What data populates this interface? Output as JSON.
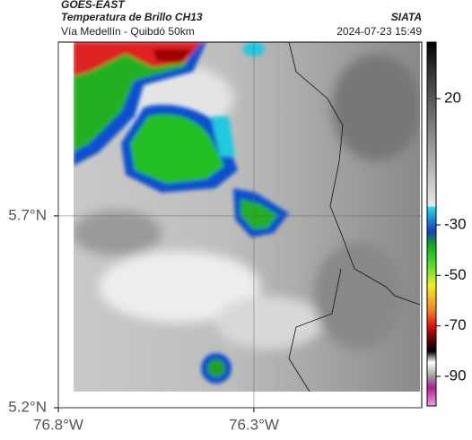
{
  "header": {
    "title": "GOES-EAST",
    "subtitle": "Temperatura de Brillo CH13",
    "route": "Vía Medellín - Quibdó 50km",
    "source": "SIATA",
    "datetime": "2024-07-23 15:49"
  },
  "map": {
    "xlim": [
      -76.8,
      -75.871
    ],
    "ylim": [
      5.2,
      6.153
    ],
    "xticks": [
      {
        "value": -76.8,
        "label": "76.8°W"
      },
      {
        "value": -76.3,
        "label": "76.3°W"
      }
    ],
    "yticks": [
      {
        "value": 5.2,
        "label": "5.2°N"
      },
      {
        "value": 5.7,
        "label": "5.7°N"
      }
    ],
    "grid": true
  },
  "colorbar": {
    "lim": [
      -101.7,
      42.4
    ],
    "ticks": [
      20,
      -30,
      -50,
      -70,
      -90
    ]
  }
}
